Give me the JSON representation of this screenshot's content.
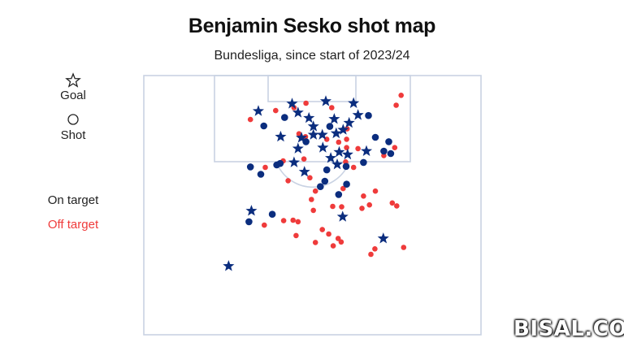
{
  "header": {
    "title": "Benjamin Sesko shot map",
    "subtitle": "Bundesliga, since start of 2023/24"
  },
  "legend": {
    "goal_label": "Goal",
    "shot_label": "Shot",
    "on_target_label": "On target",
    "off_target_label": "Off target"
  },
  "colors": {
    "on_target": "#0b2d7e",
    "off_target": "#ef3b3b",
    "pitch_lines": "#c9d2e3"
  },
  "watermark": "BISAL.COM",
  "chart_data": {
    "type": "scatter",
    "title": "Benjamin Sesko shot map",
    "subtitle": "Bundesliga, since start of 2023/24",
    "xlabel": "",
    "ylabel": "",
    "xlim": [
      0,
      68
    ],
    "ylim": [
      0,
      52.5
    ],
    "series": [
      {
        "name": "Goal",
        "marker": "star",
        "color": "#0b2d7e",
        "points": [
          [
            23.1,
            7.2
          ],
          [
            29.9,
            5.7
          ],
          [
            31.1,
            7.5
          ],
          [
            33.3,
            8.6
          ],
          [
            34.2,
            10.3
          ],
          [
            36.7,
            5.2
          ],
          [
            38.4,
            8.8
          ],
          [
            42.3,
            5.6
          ],
          [
            43.2,
            8.0
          ],
          [
            41.4,
            9.6
          ],
          [
            40.2,
            11.0
          ],
          [
            38.8,
            11.7
          ],
          [
            36.0,
            12.0
          ],
          [
            34.2,
            12.0
          ],
          [
            31.8,
            12.6
          ],
          [
            27.6,
            12.4
          ],
          [
            31.1,
            14.8
          ],
          [
            36.1,
            14.6
          ],
          [
            39.4,
            15.5
          ],
          [
            41.1,
            16.0
          ],
          [
            44.9,
            15.3
          ],
          [
            37.7,
            16.7
          ],
          [
            32.4,
            19.5
          ],
          [
            30.3,
            17.6
          ],
          [
            39.0,
            18.0
          ],
          [
            21.7,
            27.4
          ],
          [
            40.1,
            28.6
          ],
          [
            48.3,
            33.0
          ],
          [
            17.1,
            38.6
          ]
        ]
      },
      {
        "name": "Shot",
        "marker": "circle",
        "color": "#0b2d7e",
        "points": [
          [
            24.2,
            10.2
          ],
          [
            28.4,
            8.5
          ],
          [
            32.7,
            13.4
          ],
          [
            37.5,
            10.3
          ],
          [
            45.3,
            8.1
          ],
          [
            46.7,
            12.5
          ],
          [
            49.4,
            13.4
          ],
          [
            48.4,
            15.3
          ],
          [
            49.8,
            15.8
          ],
          [
            44.3,
            17.6
          ],
          [
            21.5,
            18.5
          ],
          [
            27.5,
            17.8
          ],
          [
            26.8,
            18.1
          ],
          [
            23.6,
            20.0
          ],
          [
            36.9,
            19.1
          ],
          [
            40.8,
            18.4
          ],
          [
            36.5,
            21.4
          ],
          [
            35.6,
            22.5
          ],
          [
            39.3,
            24.1
          ],
          [
            40.9,
            22.0
          ],
          [
            25.9,
            28.1
          ],
          [
            21.2,
            29.6
          ]
        ]
      },
      {
        "name": "Off target",
        "marker": "circle",
        "color": "#ef3b3b",
        "points": [
          [
            51.9,
            4.0
          ],
          [
            30.3,
            6.5
          ],
          [
            32.7,
            5.6
          ],
          [
            21.5,
            8.9
          ],
          [
            26.6,
            7.1
          ],
          [
            50.9,
            6.0
          ],
          [
            37.9,
            6.5
          ],
          [
            41.0,
            10.8
          ],
          [
            31.3,
            11.8
          ],
          [
            36.9,
            12.9
          ],
          [
            32.6,
            12.4
          ],
          [
            40.9,
            14.6
          ],
          [
            43.2,
            14.8
          ],
          [
            50.6,
            14.6
          ],
          [
            48.4,
            16.2
          ],
          [
            40.9,
            12.9
          ],
          [
            39.3,
            13.5
          ],
          [
            28.1,
            17.3
          ],
          [
            24.5,
            18.6
          ],
          [
            40.7,
            17.5
          ],
          [
            42.3,
            18.6
          ],
          [
            32.3,
            16.9
          ],
          [
            33.5,
            20.7
          ],
          [
            29.1,
            21.3
          ],
          [
            34.6,
            23.4
          ],
          [
            40.2,
            22.9
          ],
          [
            44.3,
            24.4
          ],
          [
            46.7,
            23.4
          ],
          [
            39.9,
            26.6
          ],
          [
            33.8,
            25.1
          ],
          [
            34.2,
            27.3
          ],
          [
            38.1,
            26.5
          ],
          [
            44.0,
            26.9
          ],
          [
            45.5,
            26.2
          ],
          [
            51.0,
            26.4
          ],
          [
            50.1,
            25.8
          ],
          [
            24.3,
            30.3
          ],
          [
            28.2,
            29.4
          ],
          [
            31.1,
            29.6
          ],
          [
            30.7,
            32.4
          ],
          [
            36.0,
            31.2
          ],
          [
            37.3,
            32.1
          ],
          [
            39.2,
            33.0
          ],
          [
            34.6,
            33.8
          ],
          [
            38.2,
            34.5
          ],
          [
            39.8,
            33.7
          ],
          [
            46.6,
            35.1
          ],
          [
            52.4,
            34.8
          ],
          [
            45.8,
            36.2
          ],
          [
            30.1,
            29.3
          ]
        ]
      }
    ]
  }
}
